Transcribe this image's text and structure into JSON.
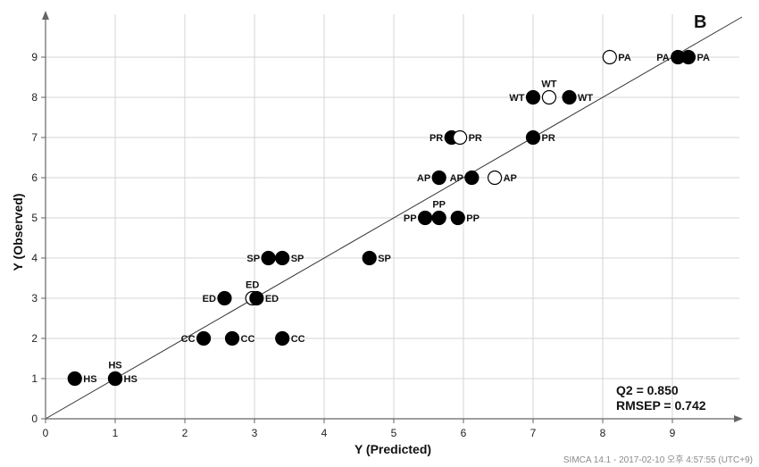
{
  "chart_data": {
    "type": "scatter",
    "panel_label": "B",
    "xlabel": "Y (Predicted)",
    "ylabel": "Y (Observed)",
    "xlim": [
      0,
      10
    ],
    "ylim": [
      0,
      10
    ],
    "x_ticks": [
      0,
      1,
      2,
      3,
      4,
      5,
      6,
      7,
      8,
      9
    ],
    "y_ticks": [
      0,
      1,
      2,
      3,
      4,
      5,
      6,
      7,
      8,
      9
    ],
    "grid": true,
    "reference_line": "y = x",
    "stats": [
      "Q2 = 0.850",
      "RMSEP = 0.742"
    ],
    "footer": "SIMCA 14.1 - 2017-02-10 오후 4:57:55 (UTC+9)",
    "points": [
      {
        "x": 0.42,
        "y": 1,
        "label": "HS",
        "label_pos": "right",
        "filled": true
      },
      {
        "x": 1.0,
        "y": 1,
        "label": "HS",
        "label_pos": "above",
        "filled": true
      },
      {
        "x": 1.0,
        "y": 1,
        "label": "HS",
        "label_pos": "right",
        "filled": true
      },
      {
        "x": 2.27,
        "y": 2,
        "label": "CC",
        "label_pos": "left",
        "filled": true
      },
      {
        "x": 2.68,
        "y": 2,
        "label": "CC",
        "label_pos": "right",
        "filled": true
      },
      {
        "x": 3.4,
        "y": 2,
        "label": "CC",
        "label_pos": "right",
        "filled": true
      },
      {
        "x": 2.57,
        "y": 3,
        "label": "ED",
        "label_pos": "left",
        "filled": true
      },
      {
        "x": 2.97,
        "y": 3,
        "label": "ED",
        "label_pos": "above",
        "filled": false
      },
      {
        "x": 3.03,
        "y": 3,
        "label": "ED",
        "label_pos": "right",
        "filled": true
      },
      {
        "x": 3.2,
        "y": 4,
        "label": "SP",
        "label_pos": "left",
        "filled": true
      },
      {
        "x": 3.4,
        "y": 4,
        "label": "SP",
        "label_pos": "right",
        "filled": true
      },
      {
        "x": 4.65,
        "y": 4,
        "label": "SP",
        "label_pos": "right",
        "filled": true
      },
      {
        "x": 5.45,
        "y": 5,
        "label": "PP",
        "label_pos": "left",
        "filled": true
      },
      {
        "x": 5.65,
        "y": 5,
        "label": "PP",
        "label_pos": "above",
        "filled": true
      },
      {
        "x": 5.92,
        "y": 5,
        "label": "PP",
        "label_pos": "right",
        "filled": true
      },
      {
        "x": 5.65,
        "y": 6,
        "label": "AP",
        "label_pos": "left",
        "filled": true
      },
      {
        "x": 6.12,
        "y": 6,
        "label": "AP",
        "label_pos": "left",
        "filled": true
      },
      {
        "x": 6.45,
        "y": 6,
        "label": "AP",
        "label_pos": "right",
        "filled": false
      },
      {
        "x": 5.83,
        "y": 7,
        "label": "PR",
        "label_pos": "left",
        "filled": true
      },
      {
        "x": 5.95,
        "y": 7,
        "label": "PR",
        "label_pos": "right",
        "filled": false
      },
      {
        "x": 7.0,
        "y": 7,
        "label": "PR",
        "label_pos": "right",
        "filled": true
      },
      {
        "x": 7.0,
        "y": 8,
        "label": "WT",
        "label_pos": "left",
        "filled": true
      },
      {
        "x": 7.23,
        "y": 8,
        "label": "WT",
        "label_pos": "above",
        "filled": false
      },
      {
        "x": 7.52,
        "y": 8,
        "label": "WT",
        "label_pos": "right",
        "filled": true
      },
      {
        "x": 8.1,
        "y": 9,
        "label": "PA",
        "label_pos": "right",
        "filled": false
      },
      {
        "x": 9.08,
        "y": 9,
        "label": "PA",
        "label_pos": "left",
        "filled": true
      },
      {
        "x": 9.23,
        "y": 9,
        "label": "PA",
        "label_pos": "right",
        "filled": true
      }
    ]
  }
}
